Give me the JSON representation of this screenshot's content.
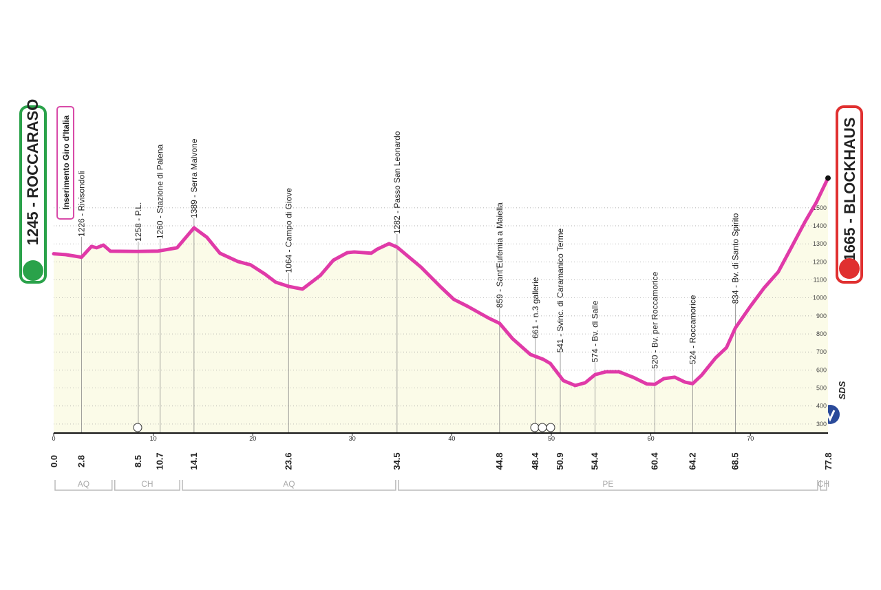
{
  "chart_data": {
    "type": "area",
    "color": "#e03aa8",
    "fill": "#fbfbe8",
    "start": {
      "label": "1245 - ROCCARASO",
      "km": {
        "value": 0,
        "label": "0.0"
      }
    },
    "finish": {
      "label": "1665 - BLOCKHAUS",
      "km": 77.8
    },
    "note": "Inserimento Giro d'Italia",
    "logo": "SDS",
    "x": [
      0,
      1.2,
      2.8,
      3.8,
      4.3,
      5.0,
      5.7,
      8.4,
      10.5,
      12.4,
      14.1,
      15.4,
      16.7,
      18.5,
      19.8,
      21.2,
      22.3,
      23.6,
      25.0,
      26.8,
      28.1,
      29.5,
      30.2,
      31.9,
      32.5,
      33.7,
      34.5,
      36.9,
      38.9,
      40.2,
      41.6,
      43.7,
      44.8,
      46.1,
      47.9,
      49.2,
      49.9,
      51.2,
      52.4,
      53.4,
      54.4,
      55.5,
      56.8,
      58.2,
      59.6,
      60.4,
      61.3,
      62.4,
      63.4,
      64.2,
      65.1,
      66.5,
      67.6,
      68.5,
      70.0,
      71.4,
      72.8,
      74.1,
      75.5,
      76.6,
      77.8
    ],
    "values": [
      1245,
      1240,
      1226,
      1286,
      1278,
      1293,
      1259,
      1258,
      1260,
      1278,
      1389,
      1336,
      1248,
      1202,
      1183,
      1133,
      1087,
      1064,
      1049,
      1125,
      1209,
      1251,
      1255,
      1248,
      1270,
      1301,
      1282,
      1171,
      1060,
      992,
      953,
      888,
      859,
      774,
      686,
      659,
      636,
      541,
      514,
      529,
      574,
      590,
      590,
      560,
      522,
      520,
      552,
      560,
      533,
      524,
      571,
      667,
      724,
      834,
      953,
      1057,
      1144,
      1278,
      1423,
      1527,
      1665
    ],
    "xlim": [
      0,
      77.8
    ],
    "xticks": [
      0,
      10,
      20,
      30,
      40,
      50,
      60,
      70
    ],
    "ylim": [
      250,
      1700
    ],
    "yticks": [
      300,
      400,
      500,
      600,
      700,
      800,
      900,
      1000,
      1100,
      1200,
      1300,
      1400,
      1500
    ],
    "grid": true,
    "waypoints": [
      {
        "label": "1226 - Rivisondoli",
        "km": 2.8
      },
      {
        "label": "1258 - P.L.",
        "km": 8.5
      },
      {
        "label": "1260 - Stazione di Palena",
        "km": 10.7
      },
      {
        "label": "1389 - Serra Malvone",
        "km": 14.1
      },
      {
        "label": "1064 - Campo di Giove",
        "km": 23.6
      },
      {
        "label": "1282 - Passo San Leonardo",
        "km": 34.5
      },
      {
        "label": "859 - Sant'Eufemia a Maiella",
        "km": 44.8
      },
      {
        "label": "661 - n.3 gallerie",
        "km": 48.4
      },
      {
        "label": "541 - Svinc. di Caramanico Terme",
        "km": 50.9
      },
      {
        "label": "574 - Bv. di Salle",
        "km": 54.4
      },
      {
        "label": "520 - Bv. per Roccamorice",
        "km": 60.4
      },
      {
        "label": "524 - Roccamorice",
        "km": 64.2
      },
      {
        "label": "834 - Bv. di Santo Spirito",
        "km": 68.5
      }
    ],
    "regions": [
      {
        "label": "AQ",
        "from": 0,
        "to": 6
      },
      {
        "label": "CH",
        "from": 6,
        "to": 12.8
      },
      {
        "label": "AQ",
        "from": 12.8,
        "to": 34.5
      },
      {
        "label": "PE",
        "from": 34.5,
        "to": 76.9
      },
      {
        "label": "CH",
        "from": 76.9,
        "to": 77.8
      }
    ]
  }
}
